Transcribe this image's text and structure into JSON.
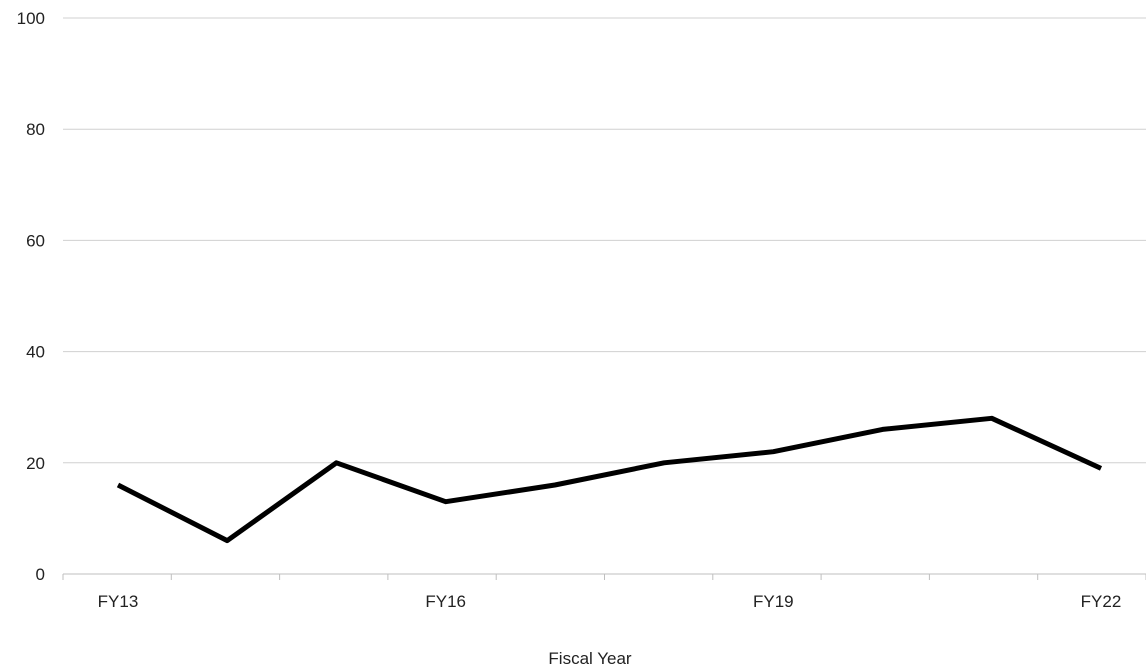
{
  "chart_data": {
    "type": "line",
    "title": "",
    "xlabel": "Fiscal Year",
    "ylabel": "",
    "ylim": [
      0,
      100
    ],
    "yticks": [
      0,
      20,
      40,
      60,
      80,
      100
    ],
    "x": [
      "FY13",
      "FY14",
      "FY15",
      "FY16",
      "FY17",
      "FY18",
      "FY19",
      "FY20",
      "FY21",
      "FY22"
    ],
    "x_tick_labels_shown": [
      "FY13",
      "FY16",
      "FY19",
      "FY22"
    ],
    "series": [
      {
        "values": [
          16,
          6,
          20,
          13,
          16,
          20,
          22,
          26,
          28,
          19
        ]
      }
    ],
    "grid": "horizontal",
    "legend": "none",
    "line_color": "#000000"
  }
}
